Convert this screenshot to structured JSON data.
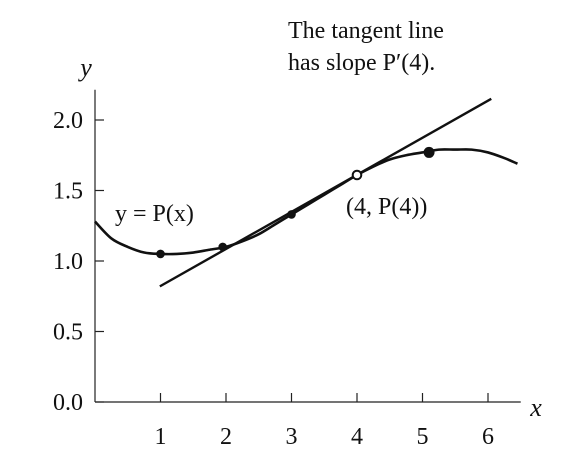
{
  "chart_data": {
    "type": "line",
    "xlabel": "x",
    "ylabel": "y",
    "xlim": [
      0,
      6.6
    ],
    "ylim": [
      0,
      2.2
    ],
    "x_ticks": [
      1,
      2,
      3,
      4,
      5,
      6
    ],
    "y_ticks": [
      "0.0",
      "0.5",
      "1.0",
      "1.5",
      "2.0"
    ],
    "grid": false,
    "series": [
      {
        "name": "y = P(x)",
        "style": "curve",
        "points": [
          [
            0.0,
            1.28
          ],
          [
            0.25,
            1.16
          ],
          [
            0.5,
            1.1
          ],
          [
            0.75,
            1.06
          ],
          [
            1.0,
            1.05
          ],
          [
            1.25,
            1.05
          ],
          [
            1.5,
            1.06
          ],
          [
            1.75,
            1.08
          ],
          [
            2.0,
            1.1
          ],
          [
            2.25,
            1.14
          ],
          [
            2.5,
            1.19
          ],
          [
            2.75,
            1.26
          ],
          [
            3.0,
            1.33
          ],
          [
            3.25,
            1.4
          ],
          [
            3.5,
            1.47
          ],
          [
            3.75,
            1.54
          ],
          [
            4.0,
            1.61
          ],
          [
            4.25,
            1.67
          ],
          [
            4.5,
            1.72
          ],
          [
            4.75,
            1.75
          ],
          [
            5.0,
            1.77
          ],
          [
            5.25,
            1.79
          ],
          [
            5.5,
            1.79
          ],
          [
            5.75,
            1.79
          ],
          [
            6.0,
            1.77
          ],
          [
            6.25,
            1.73
          ],
          [
            6.45,
            1.69
          ]
        ]
      },
      {
        "name": "tangent line",
        "style": "line",
        "points": [
          [
            0.99,
            0.82
          ],
          [
            6.05,
            2.15
          ]
        ]
      }
    ],
    "marked_points": [
      {
        "x": 1,
        "y": 1.05,
        "style": "filled",
        "r": "small"
      },
      {
        "x": 1.95,
        "y": 1.1,
        "style": "filled",
        "r": "small"
      },
      {
        "x": 3.0,
        "y": 1.33,
        "style": "filled",
        "r": "small"
      },
      {
        "x": 4,
        "y": 1.61,
        "style": "open",
        "r": "small"
      },
      {
        "x": 5.1,
        "y": 1.77,
        "style": "filled",
        "r": "large"
      }
    ],
    "annotations": {
      "curve_label": "y = P(x)",
      "point_label": "(4, P(4))",
      "title_line1": "The tangent line",
      "title_line2": "has slope P′(4)."
    }
  }
}
